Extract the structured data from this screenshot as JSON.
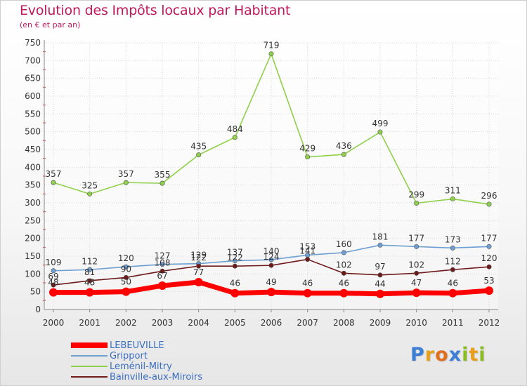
{
  "title": "Evolution des Impôts locaux par Habitant",
  "subtitle": "(en € et par an)",
  "logo": {
    "text": "Proxiti",
    "letter_colors": [
      "#3a7fd5",
      "#e8a01a",
      "#e07020",
      "#3a7fd5",
      "#8abd24",
      "#e8a01a",
      "#8abd24"
    ]
  },
  "chart_data": {
    "type": "line",
    "x": [
      "2000",
      "2001",
      "2002",
      "2003",
      "2004",
      "2005",
      "2006",
      "2007",
      "2008",
      "2009",
      "2010",
      "2011",
      "2012"
    ],
    "ylim": [
      0,
      750
    ],
    "yticks": [
      "0",
      "50",
      "100",
      "150",
      "200",
      "250",
      "300",
      "350",
      "400",
      "450",
      "500",
      "550",
      "600",
      "650",
      "700",
      "750"
    ],
    "grid": true,
    "legend_position": "bottom-left",
    "series": [
      {
        "name": "LEBEUVILLE",
        "color": "#ff0000",
        "values": [
          48,
          48,
          50,
          67,
          77,
          46,
          49,
          46,
          46,
          44,
          47,
          46,
          53
        ],
        "labels": [
          "48",
          "48",
          "50",
          "67",
          "77",
          "46",
          "49",
          "46",
          "46",
          "44",
          "47",
          "46",
          "53"
        ]
      },
      {
        "name": "Gripport",
        "color": "#6e9fd2",
        "values": [
          109,
          112,
          120,
          127,
          129,
          137,
          140,
          153,
          160,
          181,
          177,
          173,
          177
        ],
        "labels": [
          "109",
          "112",
          "120",
          "127",
          "129",
          "137",
          "140",
          "153",
          "160",
          "181",
          "177",
          "173",
          "177"
        ]
      },
      {
        "name": "Leménil-Mitry",
        "color": "#8fd04a",
        "values": [
          357,
          325,
          357,
          355,
          435,
          484,
          719,
          429,
          436,
          499,
          299,
          311,
          296
        ],
        "labels": [
          "357",
          "325",
          "357",
          "355",
          "435",
          "484",
          "719",
          "429",
          "436",
          "499",
          "299",
          "311",
          "296"
        ]
      },
      {
        "name": "Bainville-aux-Miroirs",
        "color": "#6e1a1a",
        "values": [
          69,
          81,
          90,
          108,
          122,
          122,
          124,
          141,
          102,
          97,
          102,
          112,
          120
        ],
        "labels": [
          "69",
          "81",
          "90",
          "108",
          "122",
          "122",
          "124",
          "141",
          "102",
          "97",
          "102",
          "112",
          "120"
        ]
      }
    ]
  }
}
